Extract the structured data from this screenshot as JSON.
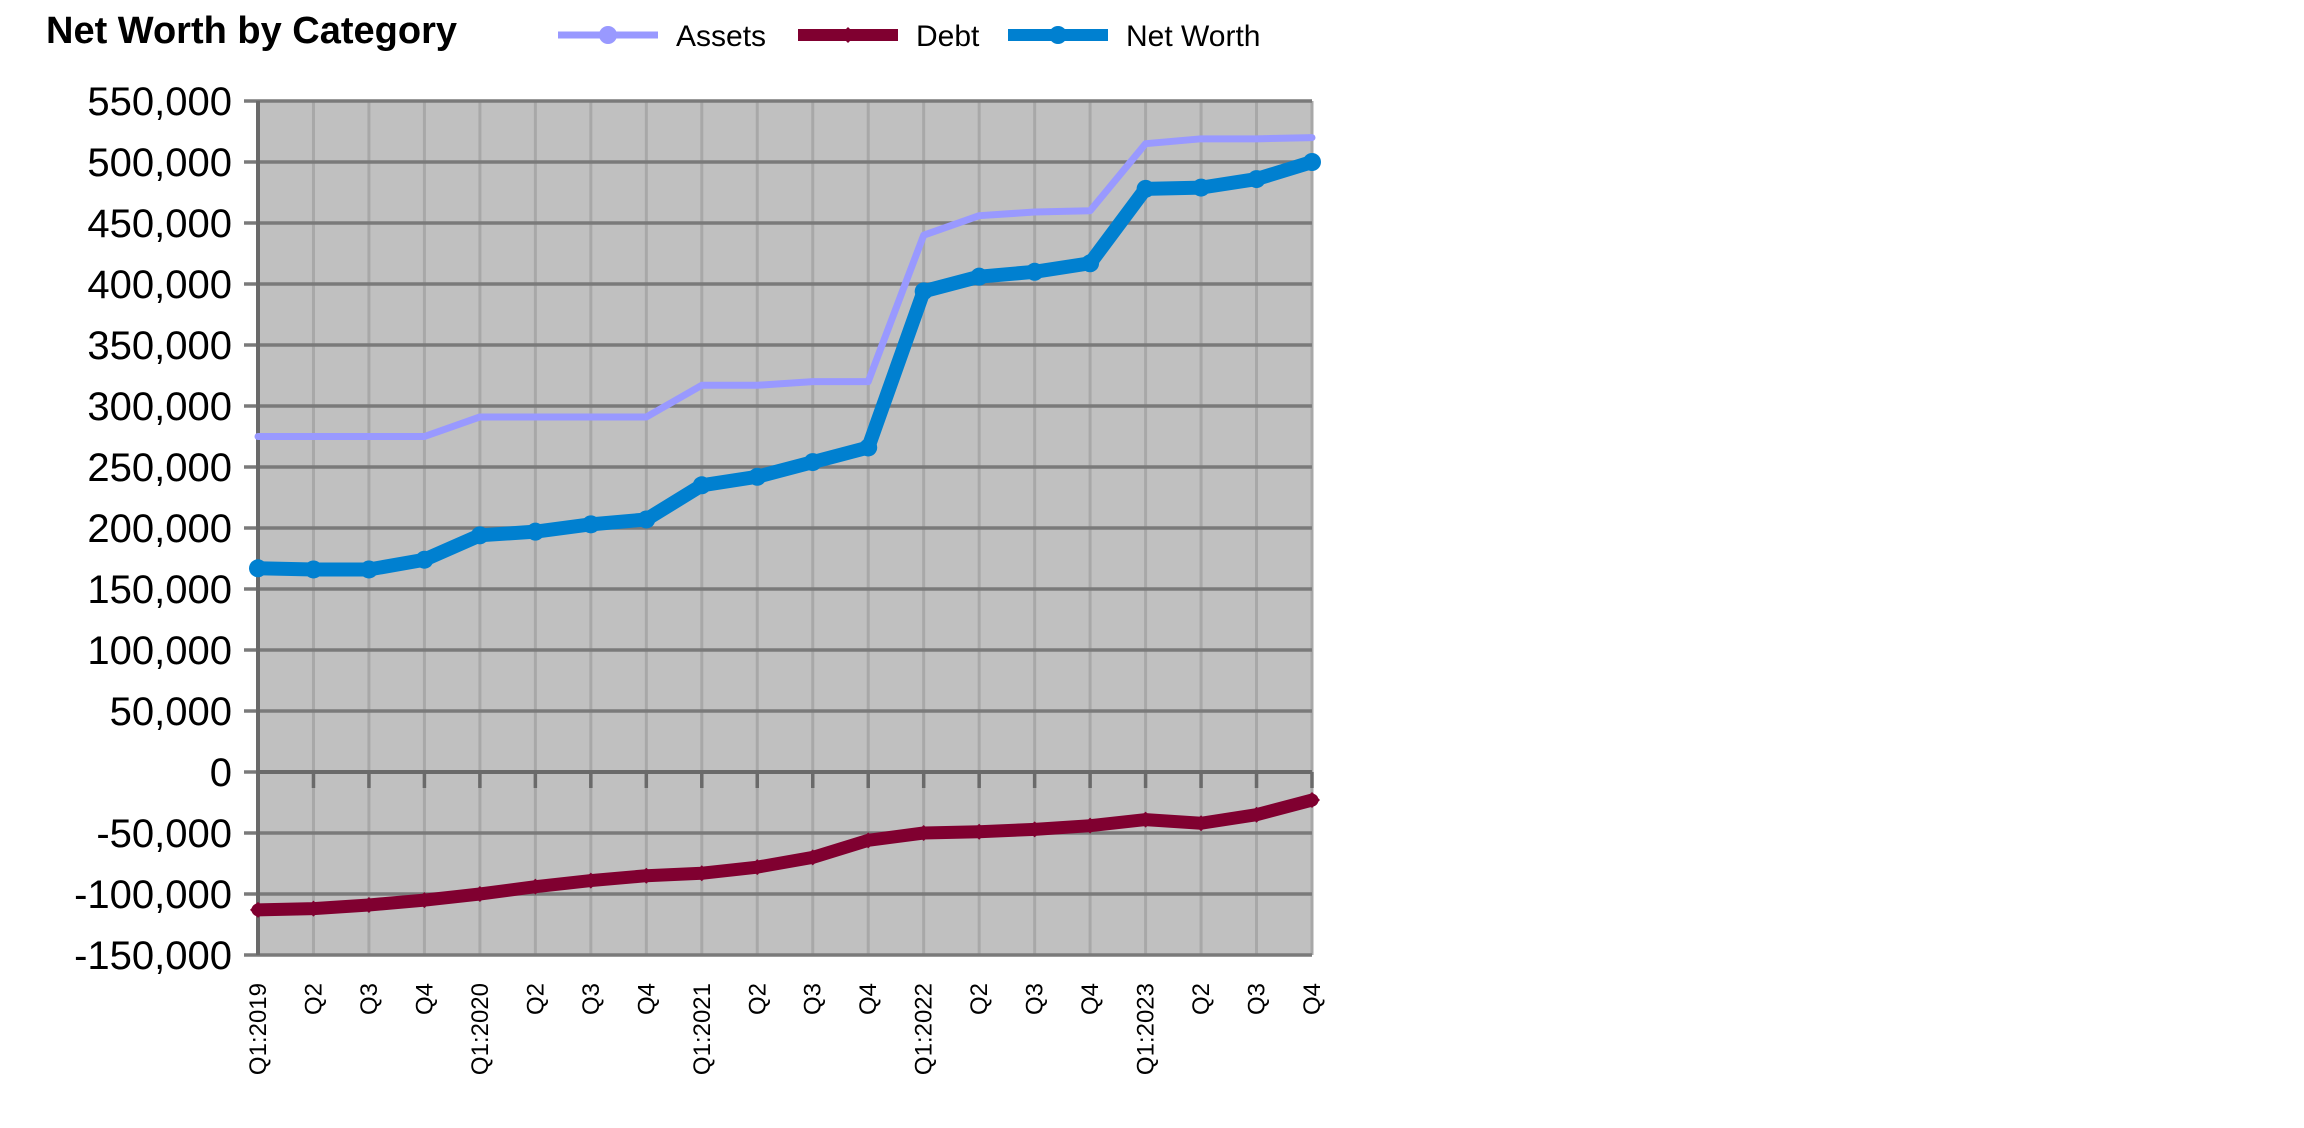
{
  "chart_data": {
    "type": "line",
    "title": "Net Worth by Category",
    "xlabel": "",
    "ylabel": "",
    "ylim": [
      -150000,
      550000
    ],
    "ytick_step": 50000,
    "grid": true,
    "legend_position": "top",
    "plot_background": "#c0c0c0",
    "categories": [
      "Q1:2019",
      "Q2",
      "Q3",
      "Q4",
      "Q1:2020",
      "Q2",
      "Q3",
      "Q4",
      "Q1:2021",
      "Q2",
      "Q3",
      "Q4",
      "Q1:2022",
      "Q2",
      "Q3",
      "Q4",
      "Q1:2023",
      "Q2",
      "Q3",
      "Q4"
    ],
    "yticks": [
      "550,000",
      "500,000",
      "450,000",
      "400,000",
      "350,000",
      "300,000",
      "250,000",
      "200,000",
      "150,000",
      "100,000",
      "50,000",
      "0",
      "-50,000",
      "-100,000",
      "-150,000"
    ],
    "series": [
      {
        "name": "Assets",
        "color": "#9999ff",
        "values": [
          275000,
          275000,
          275000,
          275000,
          291000,
          291000,
          291000,
          291000,
          317000,
          317000,
          320000,
          320000,
          440000,
          456000,
          459000,
          460000,
          515000,
          519000,
          519000,
          520000
        ]
      },
      {
        "name": "Debt",
        "color": "#800030",
        "values": [
          -113000,
          -112000,
          -109000,
          -105000,
          -100000,
          -94000,
          -89000,
          -85000,
          -83000,
          -78000,
          -70000,
          -56000,
          -50000,
          -49000,
          -47000,
          -44000,
          -39000,
          -42000,
          -35000,
          -23000
        ]
      },
      {
        "name": "Net Worth",
        "color": "#0080d0",
        "values": [
          167000,
          166000,
          166000,
          174000,
          194000,
          197000,
          203000,
          207000,
          235000,
          242000,
          254000,
          266000,
          394000,
          406000,
          410000,
          417000,
          478000,
          479000,
          486000,
          500000
        ]
      }
    ]
  }
}
